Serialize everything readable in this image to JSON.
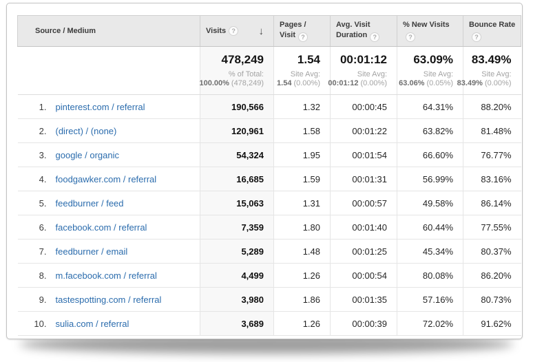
{
  "icons": {
    "help": "?",
    "sort_desc": "↓"
  },
  "colors": {
    "link_blue": "#2b6cad",
    "header_bg": "#e9e9e9",
    "sorted_column_bg": "#f8f8f8"
  },
  "table": {
    "header": {
      "columns": [
        {
          "label": "Source / Medium"
        },
        {
          "label": "Visits"
        },
        {
          "label": "Pages / Visit"
        },
        {
          "label": "Avg. Visit Duration"
        },
        {
          "label": "% New Visits"
        },
        {
          "label": "Bounce Rate"
        }
      ]
    },
    "summary": {
      "visits": {
        "value": "478,249",
        "label": "% of Total:",
        "avg": "100.00%",
        "delta": "(478,249)"
      },
      "pages_per_visit": {
        "value": "1.54",
        "label": "Site Avg:",
        "avg": "1.54",
        "delta": "(0.00%)"
      },
      "avg_visit_duration": {
        "value": "00:01:12",
        "label": "Site Avg:",
        "avg": "00:01:12",
        "delta": "(0.00%)"
      },
      "pct_new_visits": {
        "value": "63.09%",
        "label": "Site Avg:",
        "avg": "63.06%",
        "delta": "(0.05%)"
      },
      "bounce_rate": {
        "value": "83.49%",
        "label": "Site Avg:",
        "avg": "83.49%",
        "delta": "(0.00%)"
      }
    },
    "rows": [
      {
        "index": "1.",
        "source": "pinterest.com / referral",
        "visits": "190,566",
        "pages_per_visit": "1.32",
        "avg_visit_duration": "00:00:45",
        "pct_new_visits": "64.31%",
        "bounce_rate": "88.20%"
      },
      {
        "index": "2.",
        "source": "(direct) / (none)",
        "visits": "120,961",
        "pages_per_visit": "1.58",
        "avg_visit_duration": "00:01:22",
        "pct_new_visits": "63.82%",
        "bounce_rate": "81.48%"
      },
      {
        "index": "3.",
        "source": "google / organic",
        "visits": "54,324",
        "pages_per_visit": "1.95",
        "avg_visit_duration": "00:01:54",
        "pct_new_visits": "66.60%",
        "bounce_rate": "76.77%"
      },
      {
        "index": "4.",
        "source": "foodgawker.com / referral",
        "visits": "16,685",
        "pages_per_visit": "1.59",
        "avg_visit_duration": "00:01:31",
        "pct_new_visits": "56.99%",
        "bounce_rate": "83.16%"
      },
      {
        "index": "5.",
        "source": "feedburner / feed",
        "visits": "15,063",
        "pages_per_visit": "1.31",
        "avg_visit_duration": "00:00:57",
        "pct_new_visits": "49.58%",
        "bounce_rate": "86.14%"
      },
      {
        "index": "6.",
        "source": "facebook.com / referral",
        "visits": "7,359",
        "pages_per_visit": "1.80",
        "avg_visit_duration": "00:01:40",
        "pct_new_visits": "60.44%",
        "bounce_rate": "77.55%"
      },
      {
        "index": "7.",
        "source": "feedburner / email",
        "visits": "5,289",
        "pages_per_visit": "1.48",
        "avg_visit_duration": "00:01:25",
        "pct_new_visits": "45.34%",
        "bounce_rate": "80.37%"
      },
      {
        "index": "8.",
        "source": "m.facebook.com / referral",
        "visits": "4,499",
        "pages_per_visit": "1.26",
        "avg_visit_duration": "00:00:54",
        "pct_new_visits": "80.08%",
        "bounce_rate": "86.20%"
      },
      {
        "index": "9.",
        "source": "tastespotting.com / referral",
        "visits": "3,980",
        "pages_per_visit": "1.86",
        "avg_visit_duration": "00:01:35",
        "pct_new_visits": "57.16%",
        "bounce_rate": "80.73%"
      },
      {
        "index": "10.",
        "source": "sulia.com / referral",
        "visits": "3,689",
        "pages_per_visit": "1.26",
        "avg_visit_duration": "00:00:39",
        "pct_new_visits": "72.02%",
        "bounce_rate": "91.62%"
      }
    ]
  }
}
